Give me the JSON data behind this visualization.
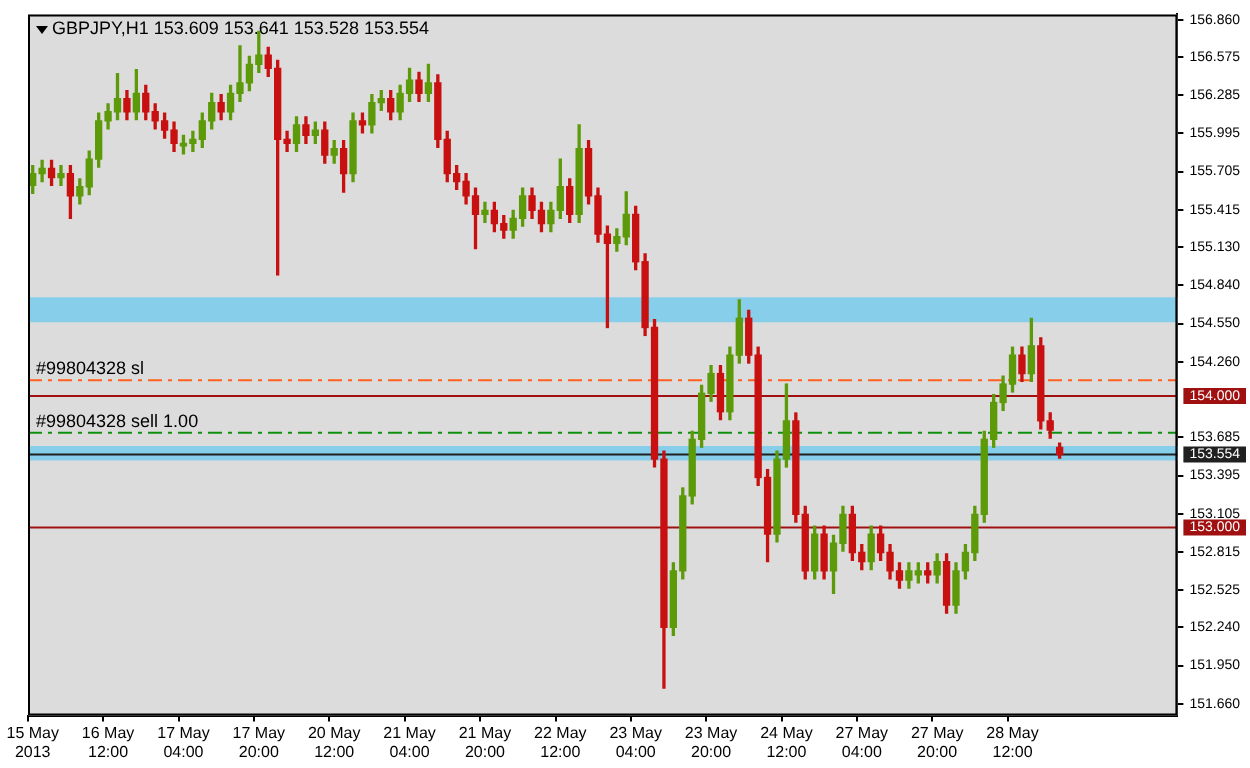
{
  "chart_data": {
    "type": "candlestick",
    "title": "GBPJPY,H1 153.609 153.641 153.528 153.554",
    "categories": [
      "15 May 2013",
      null,
      null,
      null,
      null,
      null,
      null,
      null,
      "16 May 12:00",
      null,
      null,
      null,
      null,
      null,
      null,
      null,
      "17 May 04:00",
      null,
      null,
      null,
      null,
      null,
      null,
      null,
      "17 May 20:00",
      null,
      null,
      null,
      null,
      null,
      null,
      null,
      "20 May 12:00",
      null,
      null,
      null,
      null,
      null,
      null,
      null,
      "21 May 04:00",
      null,
      null,
      null,
      null,
      null,
      null,
      null,
      "21 May 20:00",
      null,
      null,
      null,
      null,
      null,
      null,
      null,
      "22 May 12:00",
      null,
      null,
      null,
      null,
      null,
      null,
      null,
      "23 May 04:00",
      null,
      null,
      null,
      null,
      null,
      null,
      null,
      "23 May 20:00",
      null,
      null,
      null,
      null,
      null,
      null,
      null,
      "24 May 12:00",
      null,
      null,
      null,
      null,
      null,
      null,
      null,
      "27 May 04:00",
      null,
      null,
      null,
      null,
      null,
      null,
      null,
      "27 May 20:00",
      null,
      null,
      null,
      null,
      null,
      null,
      null,
      "28 May 12:00",
      null,
      null,
      null,
      null,
      null,
      null,
      null,
      null,
      null,
      null,
      null,
      null,
      null,
      null,
      null,
      null,
      null
    ],
    "ohlc": [
      [
        155.6,
        155.75,
        155.54,
        155.69
      ],
      [
        155.69,
        155.79,
        155.63,
        155.73
      ],
      [
        155.73,
        155.79,
        155.6,
        155.66
      ],
      [
        155.66,
        155.75,
        155.6,
        155.69
      ],
      [
        155.69,
        155.75,
        155.35,
        155.52
      ],
      [
        155.52,
        155.65,
        155.46,
        155.59
      ],
      [
        155.59,
        155.86,
        155.53,
        155.8
      ],
      [
        155.8,
        156.15,
        155.74,
        156.09
      ],
      [
        156.09,
        156.22,
        156.03,
        156.16
      ],
      [
        156.16,
        156.45,
        156.1,
        156.26
      ],
      [
        156.26,
        156.32,
        156.1,
        156.16
      ],
      [
        156.16,
        156.48,
        156.1,
        156.3
      ],
      [
        156.3,
        156.36,
        156.1,
        156.16
      ],
      [
        156.16,
        156.22,
        156.03,
        156.09
      ],
      [
        156.09,
        156.15,
        155.96,
        156.02
      ],
      [
        156.02,
        156.08,
        155.86,
        155.92
      ],
      [
        155.9,
        155.98,
        155.84,
        155.92
      ],
      [
        155.92,
        156.01,
        155.86,
        155.95
      ],
      [
        155.95,
        156.15,
        155.89,
        156.09
      ],
      [
        156.09,
        156.3,
        156.03,
        156.23
      ],
      [
        156.23,
        156.29,
        156.1,
        156.16
      ],
      [
        156.16,
        156.36,
        156.1,
        156.3
      ],
      [
        156.3,
        156.66,
        156.24,
        156.38
      ],
      [
        156.38,
        156.58,
        156.32,
        156.52
      ],
      [
        156.52,
        156.77,
        156.46,
        156.59
      ],
      [
        156.59,
        156.65,
        156.43,
        156.49
      ],
      [
        156.49,
        156.55,
        154.92,
        155.95
      ],
      [
        155.95,
        156.01,
        155.86,
        155.92
      ],
      [
        155.92,
        156.12,
        155.86,
        156.06
      ],
      [
        156.06,
        156.12,
        155.92,
        155.98
      ],
      [
        155.98,
        156.08,
        155.92,
        156.02
      ],
      [
        156.02,
        156.08,
        155.77,
        155.83
      ],
      [
        155.83,
        155.94,
        155.77,
        155.88
      ],
      [
        155.88,
        155.94,
        155.55,
        155.69
      ],
      [
        155.69,
        156.15,
        155.63,
        156.09
      ],
      [
        156.09,
        156.15,
        156.0,
        156.06
      ],
      [
        156.06,
        156.29,
        156.0,
        156.23
      ],
      [
        156.23,
        156.32,
        156.17,
        156.26
      ],
      [
        156.26,
        156.32,
        156.1,
        156.16
      ],
      [
        156.16,
        156.36,
        156.1,
        156.3
      ],
      [
        156.3,
        156.49,
        156.24,
        156.4
      ],
      [
        156.4,
        156.46,
        156.24,
        156.3
      ],
      [
        156.3,
        156.52,
        156.24,
        156.38
      ],
      [
        156.38,
        156.44,
        155.89,
        155.95
      ],
      [
        155.95,
        156.01,
        155.63,
        155.69
      ],
      [
        155.69,
        155.75,
        155.57,
        155.63
      ],
      [
        155.63,
        155.69,
        155.46,
        155.52
      ],
      [
        155.52,
        155.58,
        155.12,
        155.38
      ],
      [
        155.38,
        155.47,
        155.32,
        155.41
      ],
      [
        155.41,
        155.47,
        155.25,
        155.31
      ],
      [
        155.31,
        155.37,
        155.2,
        155.26
      ],
      [
        155.26,
        155.41,
        155.2,
        155.35
      ],
      [
        155.35,
        155.58,
        155.29,
        155.52
      ],
      [
        155.52,
        155.58,
        155.35,
        155.41
      ],
      [
        155.41,
        155.47,
        155.25,
        155.31
      ],
      [
        155.31,
        155.47,
        155.25,
        155.41
      ],
      [
        155.41,
        155.8,
        155.35,
        155.59
      ],
      [
        155.59,
        155.65,
        155.32,
        155.38
      ],
      [
        155.38,
        156.06,
        155.32,
        155.88
      ],
      [
        155.88,
        155.94,
        155.46,
        155.52
      ],
      [
        155.52,
        155.58,
        155.17,
        155.23
      ],
      [
        155.23,
        155.29,
        154.52,
        155.16
      ],
      [
        155.16,
        155.27,
        155.1,
        155.21
      ],
      [
        155.21,
        155.55,
        155.15,
        155.38
      ],
      [
        155.38,
        155.44,
        154.96,
        155.02
      ],
      [
        155.02,
        155.08,
        154.46,
        154.52
      ],
      [
        154.52,
        154.58,
        153.46,
        153.52
      ],
      [
        153.52,
        153.58,
        151.78,
        152.24
      ],
      [
        152.24,
        152.73,
        152.18,
        152.67
      ],
      [
        152.67,
        153.3,
        152.61,
        153.24
      ],
      [
        153.24,
        153.73,
        153.18,
        153.67
      ],
      [
        153.67,
        154.08,
        153.61,
        154.02
      ],
      [
        154.02,
        154.23,
        153.96,
        154.17
      ],
      [
        154.17,
        154.23,
        153.82,
        153.88
      ],
      [
        153.88,
        154.37,
        153.82,
        154.31
      ],
      [
        154.31,
        154.73,
        154.25,
        154.59
      ],
      [
        154.59,
        154.65,
        154.25,
        154.31
      ],
      [
        154.31,
        154.37,
        153.32,
        153.38
      ],
      [
        153.38,
        153.44,
        152.74,
        152.95
      ],
      [
        152.95,
        153.58,
        152.89,
        153.52
      ],
      [
        153.52,
        154.09,
        153.46,
        153.81
      ],
      [
        153.81,
        153.87,
        153.04,
        153.1
      ],
      [
        153.1,
        153.16,
        152.61,
        152.67
      ],
      [
        152.67,
        153.01,
        152.61,
        152.95
      ],
      [
        152.95,
        153.01,
        152.61,
        152.67
      ],
      [
        152.67,
        152.94,
        152.5,
        152.88
      ],
      [
        152.88,
        153.16,
        152.82,
        153.1
      ],
      [
        153.1,
        153.16,
        152.75,
        152.81
      ],
      [
        152.81,
        152.87,
        152.68,
        152.74
      ],
      [
        152.74,
        153.01,
        152.68,
        152.95
      ],
      [
        152.95,
        153.01,
        152.75,
        152.81
      ],
      [
        152.81,
        152.87,
        152.61,
        152.67
      ],
      [
        152.67,
        152.73,
        152.54,
        152.6
      ],
      [
        152.6,
        152.73,
        152.54,
        152.67
      ],
      [
        152.64,
        152.73,
        152.58,
        152.67
      ],
      [
        152.67,
        152.73,
        152.58,
        152.64
      ],
      [
        152.64,
        152.8,
        152.58,
        152.74
      ],
      [
        152.74,
        152.8,
        152.35,
        152.41
      ],
      [
        152.41,
        152.73,
        152.35,
        152.67
      ],
      [
        152.67,
        152.87,
        152.61,
        152.81
      ],
      [
        152.81,
        153.16,
        152.75,
        153.1
      ],
      [
        153.1,
        153.73,
        153.04,
        153.67
      ],
      [
        153.67,
        154.01,
        153.61,
        153.95
      ],
      [
        153.95,
        154.15,
        153.89,
        154.09
      ],
      [
        154.09,
        154.37,
        154.03,
        154.31
      ],
      [
        154.31,
        154.37,
        154.11,
        154.17
      ],
      [
        154.17,
        154.59,
        154.11,
        154.38
      ],
      [
        154.38,
        154.44,
        153.75,
        153.81
      ],
      [
        153.81,
        153.87,
        153.68,
        153.74
      ],
      [
        153.609,
        153.641,
        153.528,
        153.554
      ],
      null,
      null,
      null,
      null,
      null,
      null,
      null,
      null,
      null,
      null,
      null,
      null
    ],
    "colors": [
      "#5c9a0a",
      "#5c9a0a",
      "#c81010",
      "#5c9a0a",
      "#c81010",
      "#5c9a0a",
      "#5c9a0a",
      "#5c9a0a",
      "#5c9a0a",
      "#5c9a0a",
      "#c81010",
      "#5c9a0a",
      "#c81010",
      "#c81010",
      "#c81010",
      "#c81010",
      "#5c9a0a",
      "#5c9a0a",
      "#5c9a0a",
      "#5c9a0a",
      "#c81010",
      "#5c9a0a",
      "#5c9a0a",
      "#5c9a0a",
      "#5c9a0a",
      "#c81010",
      "#c81010",
      "#c81010",
      "#5c9a0a",
      "#c81010",
      "#5c9a0a",
      "#c81010",
      "#5c9a0a",
      "#c81010",
      "#5c9a0a",
      "#c81010",
      "#5c9a0a",
      "#5c9a0a",
      "#c81010",
      "#5c9a0a",
      "#5c9a0a",
      "#c81010",
      "#5c9a0a",
      "#c81010",
      "#c81010",
      "#c81010",
      "#c81010",
      "#c81010",
      "#5c9a0a",
      "#c81010",
      "#c81010",
      "#5c9a0a",
      "#5c9a0a",
      "#c81010",
      "#c81010",
      "#5c9a0a",
      "#5c9a0a",
      "#c81010",
      "#5c9a0a",
      "#c81010",
      "#c81010",
      "#c81010",
      "#5c9a0a",
      "#5c9a0a",
      "#c81010",
      "#c81010",
      "#c81010",
      "#c81010",
      "#5c9a0a",
      "#5c9a0a",
      "#5c9a0a",
      "#5c9a0a",
      "#5c9a0a",
      "#c81010",
      "#5c9a0a",
      "#5c9a0a",
      "#c81010",
      "#c81010",
      "#c81010",
      "#5c9a0a",
      "#5c9a0a",
      "#c81010",
      "#c81010",
      "#5c9a0a",
      "#c81010",
      "#5c9a0a",
      "#5c9a0a",
      "#c81010",
      "#c81010",
      "#5c9a0a",
      "#c81010",
      "#c81010",
      "#c81010",
      "#5c9a0a",
      "#5c9a0a",
      "#c81010",
      "#5c9a0a",
      "#c81010",
      "#5c9a0a",
      "#5c9a0a",
      "#5c9a0a",
      "#5c9a0a",
      "#5c9a0a",
      "#5c9a0a",
      "#5c9a0a",
      "#c81010",
      "#5c9a0a",
      "#c81010",
      "#c81010",
      "#c81010",
      null,
      null,
      null,
      null,
      null,
      null,
      null,
      null,
      null,
      null,
      null,
      null
    ],
    "ylim": [
      151.57,
      156.9
    ],
    "yticks": [
      {
        "value": 156.86,
        "label": "156.860"
      },
      {
        "value": 156.575,
        "label": "156.575"
      },
      {
        "value": 156.285,
        "label": "156.285"
      },
      {
        "value": 155.995,
        "label": "155.995"
      },
      {
        "value": 155.705,
        "label": "155.705"
      },
      {
        "value": 155.415,
        "label": "155.415"
      },
      {
        "value": 155.13,
        "label": "155.130"
      },
      {
        "value": 154.84,
        "label": "154.840"
      },
      {
        "value": 154.55,
        "label": "154.550"
      },
      {
        "value": 154.26,
        "label": "154.260"
      },
      {
        "value": 153.685,
        "label": "153.685"
      },
      {
        "value": 153.395,
        "label": "153.395"
      },
      {
        "value": 153.105,
        "label": "153.105"
      },
      {
        "value": 152.815,
        "label": "152.815"
      },
      {
        "value": 152.525,
        "label": "152.525"
      },
      {
        "value": 152.24,
        "label": "152.240"
      },
      {
        "value": 151.95,
        "label": "151.950"
      },
      {
        "value": 151.66,
        "label": "151.660"
      }
    ],
    "bands": [
      {
        "axis": "y",
        "from": 154.56,
        "to": 154.75,
        "color": "#87ceeb"
      },
      {
        "axis": "y",
        "from": 153.51,
        "to": 153.62,
        "color": "#87ceeb"
      }
    ],
    "ref_lines": [
      {
        "axis": "y",
        "value": 154.12,
        "label": "#99804328 sl",
        "color": "#ff6020",
        "line_style": "dashed"
      },
      {
        "axis": "y",
        "value": 154.0,
        "label": "154.000",
        "color": "#a01010",
        "line_style": "solid"
      },
      {
        "axis": "y",
        "value": 153.72,
        "label": "#99804328 sell 1.00",
        "color": "#109010",
        "line_style": "dashed"
      },
      {
        "axis": "y",
        "value": 153.554,
        "label": "153.554",
        "color": "#202020",
        "line_style": "solid"
      },
      {
        "axis": "y",
        "value": 153.0,
        "label": "153.000",
        "color": "#a01010",
        "line_style": "solid"
      }
    ]
  }
}
